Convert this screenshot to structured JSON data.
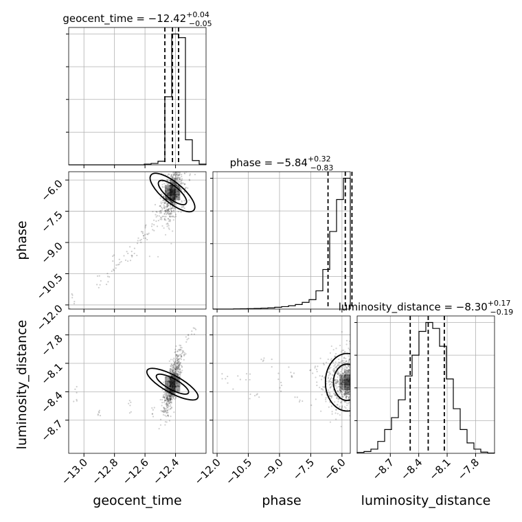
{
  "chart_data": {
    "type": "corner",
    "parameters": [
      "geocent_time",
      "phase",
      "luminosity_distance"
    ],
    "axis_labels": {
      "geocent_time": "geocent_time",
      "phase": "phase",
      "luminosity_distance": "luminosity_distance"
    },
    "ranges": {
      "geocent_time": [
        -13.1,
        -12.2
      ],
      "phase": [
        -12.2,
        -5.6
      ],
      "luminosity_distance": [
        -9.05,
        -7.6
      ]
    },
    "ticks": {
      "geocent_time": [
        -13.0,
        -12.8,
        -12.6,
        -12.4
      ],
      "phase": [
        -12.0,
        -10.5,
        -9.0,
        -7.5,
        -6.0
      ],
      "luminosity_distance": [
        -8.7,
        -8.4,
        -8.1,
        -7.8
      ]
    },
    "tick_labels": {
      "geocent_time": [
        "−13.0",
        "−12.8",
        "−12.6",
        "−12.4"
      ],
      "phase": [
        "−12.0",
        "−10.5",
        "−9.0",
        "−7.5",
        "−6.0"
      ],
      "luminosity_distance": [
        "−8.7",
        "−8.4",
        "−8.1",
        "−7.8"
      ]
    },
    "titles": [
      {
        "param": "geocent_time",
        "prefix": "geocent_time = −12.42",
        "sup": "+0.04",
        "sub": "−0.05"
      },
      {
        "param": "phase",
        "prefix": "phase = −5.84",
        "sup": "+0.32",
        "sub": "−0.83"
      },
      {
        "param": "luminosity_distance",
        "prefix": "luminosity_distance = −8.30",
        "sup": "+0.17",
        "sub": "−0.19"
      }
    ],
    "quantiles": {
      "geocent_time": [
        -12.47,
        -12.42,
        -12.38
      ],
      "phase": [
        -6.67,
        -5.84,
        -5.52
      ],
      "luminosity_distance": [
        -8.49,
        -8.3,
        -8.13
      ]
    },
    "histograms": {
      "geocent_time": {
        "edges": [
          -13.1,
          -13.055,
          -13.01,
          -12.965,
          -12.92,
          -12.875,
          -12.83,
          -12.785,
          -12.74,
          -12.695,
          -12.65,
          -12.605,
          -12.56,
          -12.515,
          -12.47,
          -12.425,
          -12.38,
          -12.335,
          -12.29,
          -12.245,
          -12.2
        ],
        "counts": [
          0,
          0,
          0,
          0,
          0,
          0,
          0,
          0,
          0,
          0,
          0,
          2,
          4,
          10,
          190,
          365,
          355,
          70,
          12,
          2
        ]
      },
      "phase": {
        "edges": [
          -12.2,
          -11.87,
          -11.54,
          -11.21,
          -10.88,
          -10.55,
          -10.22,
          -9.89,
          -9.56,
          -9.23,
          -8.9,
          -8.57,
          -8.24,
          -7.91,
          -7.58,
          -7.25,
          -6.92,
          -6.59,
          -6.26,
          -5.93,
          -5.6
        ],
        "counts": [
          0,
          0,
          0,
          1,
          2,
          3,
          4,
          6,
          8,
          12,
          16,
          22,
          30,
          44,
          62,
          120,
          260,
          510,
          720,
          860
        ]
      },
      "luminosity_distance": {
        "edges": [
          -9.05,
          -8.9775,
          -8.905,
          -8.8325,
          -8.76,
          -8.6875,
          -8.615,
          -8.5425,
          -8.47,
          -8.3975,
          -8.325,
          -8.2525,
          -8.18,
          -8.1075,
          -8.035,
          -7.9625,
          -7.89,
          -7.8175,
          -7.745,
          -7.6725,
          -7.6
        ],
        "counts": [
          3,
          6,
          14,
          40,
          80,
          120,
          180,
          260,
          330,
          410,
          440,
          420,
          360,
          250,
          150,
          80,
          35,
          14,
          4,
          1
        ]
      }
    },
    "scatter_samples": {
      "phase_vs_geocent_time": [
        [
          -13.08,
          -11.6
        ],
        [
          -12.9,
          -10.7
        ],
        [
          -12.85,
          -10.5
        ],
        [
          -12.8,
          -10.2
        ],
        [
          -12.78,
          -9.9
        ],
        [
          -12.72,
          -9.7
        ],
        [
          -12.68,
          -9.4
        ],
        [
          -12.65,
          -9.1
        ],
        [
          -12.62,
          -8.8
        ],
        [
          -12.6,
          -8.6
        ],
        [
          -12.58,
          -8.4
        ],
        [
          -12.55,
          -8.1
        ],
        [
          -12.53,
          -7.9
        ],
        [
          -12.51,
          -7.6
        ],
        [
          -12.49,
          -7.3
        ],
        [
          -12.47,
          -7.0
        ],
        [
          -12.45,
          -6.7
        ],
        [
          -12.44,
          -6.4
        ],
        [
          -12.43,
          -6.1
        ],
        [
          -12.41,
          -5.9
        ],
        [
          -12.39,
          -6.2
        ],
        [
          -12.37,
          -6.6
        ],
        [
          -12.35,
          -6.9
        ],
        [
          -12.33,
          -6.3
        ],
        [
          -12.3,
          -6.0
        ]
      ],
      "luminosity_distance_vs_geocent_time": [
        [
          -13.05,
          -8.45
        ],
        [
          -12.9,
          -8.6
        ],
        [
          -12.7,
          -8.55
        ],
        [
          -12.55,
          -8.65
        ],
        [
          -12.48,
          -8.5
        ],
        [
          -12.46,
          -8.4
        ],
        [
          -12.44,
          -8.3
        ],
        [
          -12.42,
          -8.25
        ],
        [
          -12.4,
          -8.15
        ],
        [
          -12.38,
          -8.05
        ],
        [
          -12.36,
          -7.95
        ],
        [
          -12.32,
          -7.85
        ],
        [
          -12.28,
          -7.75
        ]
      ],
      "luminosity_distance_vs_phase": [
        [
          -11.5,
          -8.3
        ],
        [
          -10.8,
          -8.2
        ],
        [
          -10.2,
          -8.45
        ],
        [
          -9.6,
          -8.1
        ],
        [
          -9.0,
          -8.35
        ],
        [
          -8.4,
          -8.25
        ],
        [
          -7.9,
          -8.5
        ],
        [
          -7.4,
          -8.2
        ],
        [
          -7.0,
          -8.35
        ],
        [
          -6.6,
          -8.15
        ],
        [
          -6.3,
          -8.3
        ],
        [
          -6.0,
          -8.4
        ],
        [
          -5.8,
          -8.25
        ]
      ]
    },
    "grid": true
  }
}
